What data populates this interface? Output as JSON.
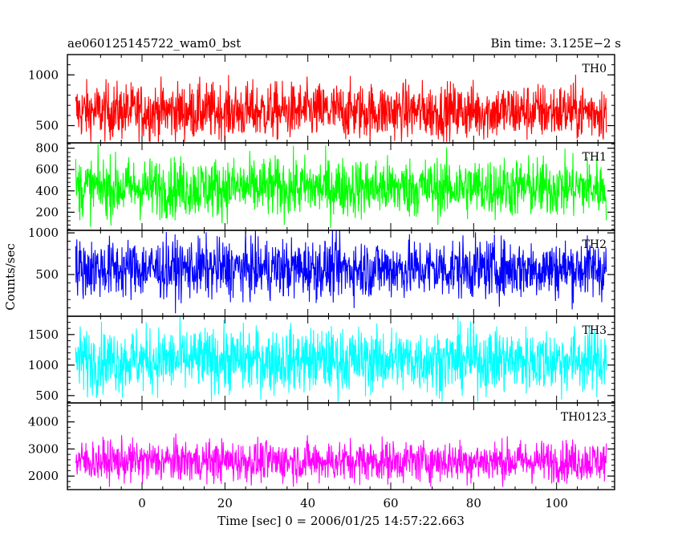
{
  "chart_data": {
    "type": "line",
    "title": "ae060125145722_wam0_bst",
    "subtitle": "Bin time: 3.125E−2 s",
    "xlabel": "Time [sec] 0 = 2006/01/25 14:57:22.663",
    "ylabel": "Counts/sec",
    "xlim": [
      -18,
      114
    ],
    "x_ticks": [
      0,
      20,
      40,
      60,
      80,
      100
    ],
    "x_range_data": [
      -16,
      112
    ],
    "grid": false,
    "panels": [
      {
        "name": "TH0",
        "color": "#ff0000",
        "ylim": [
          330,
          1200
        ],
        "y_ticks": [
          500,
          1000
        ],
        "mean": 640,
        "spread": 330,
        "floor": 340
      },
      {
        "name": "TH1",
        "color": "#00ff00",
        "ylim": [
          30,
          850
        ],
        "y_ticks": [
          200,
          400,
          600,
          800
        ],
        "mean": 430,
        "spread": 330,
        "floor": 40
      },
      {
        "name": "TH2",
        "color": "#0000ff",
        "ylim": [
          0,
          1030
        ],
        "y_ticks": [
          500,
          1000
        ],
        "mean": 570,
        "spread": 420,
        "floor": 30
      },
      {
        "name": "TH3",
        "color": "#00ffff",
        "ylim": [
          380,
          1800
        ],
        "y_ticks": [
          500,
          1000,
          1500
        ],
        "mean": 1080,
        "spread": 620,
        "floor": 400
      },
      {
        "name": "TH0123",
        "color": "#ff00ff",
        "ylim": [
          1500,
          4700
        ],
        "y_ticks": [
          2000,
          3000,
          4000
        ],
        "mean": 2550,
        "spread": 900,
        "floor": 1600
      }
    ]
  }
}
